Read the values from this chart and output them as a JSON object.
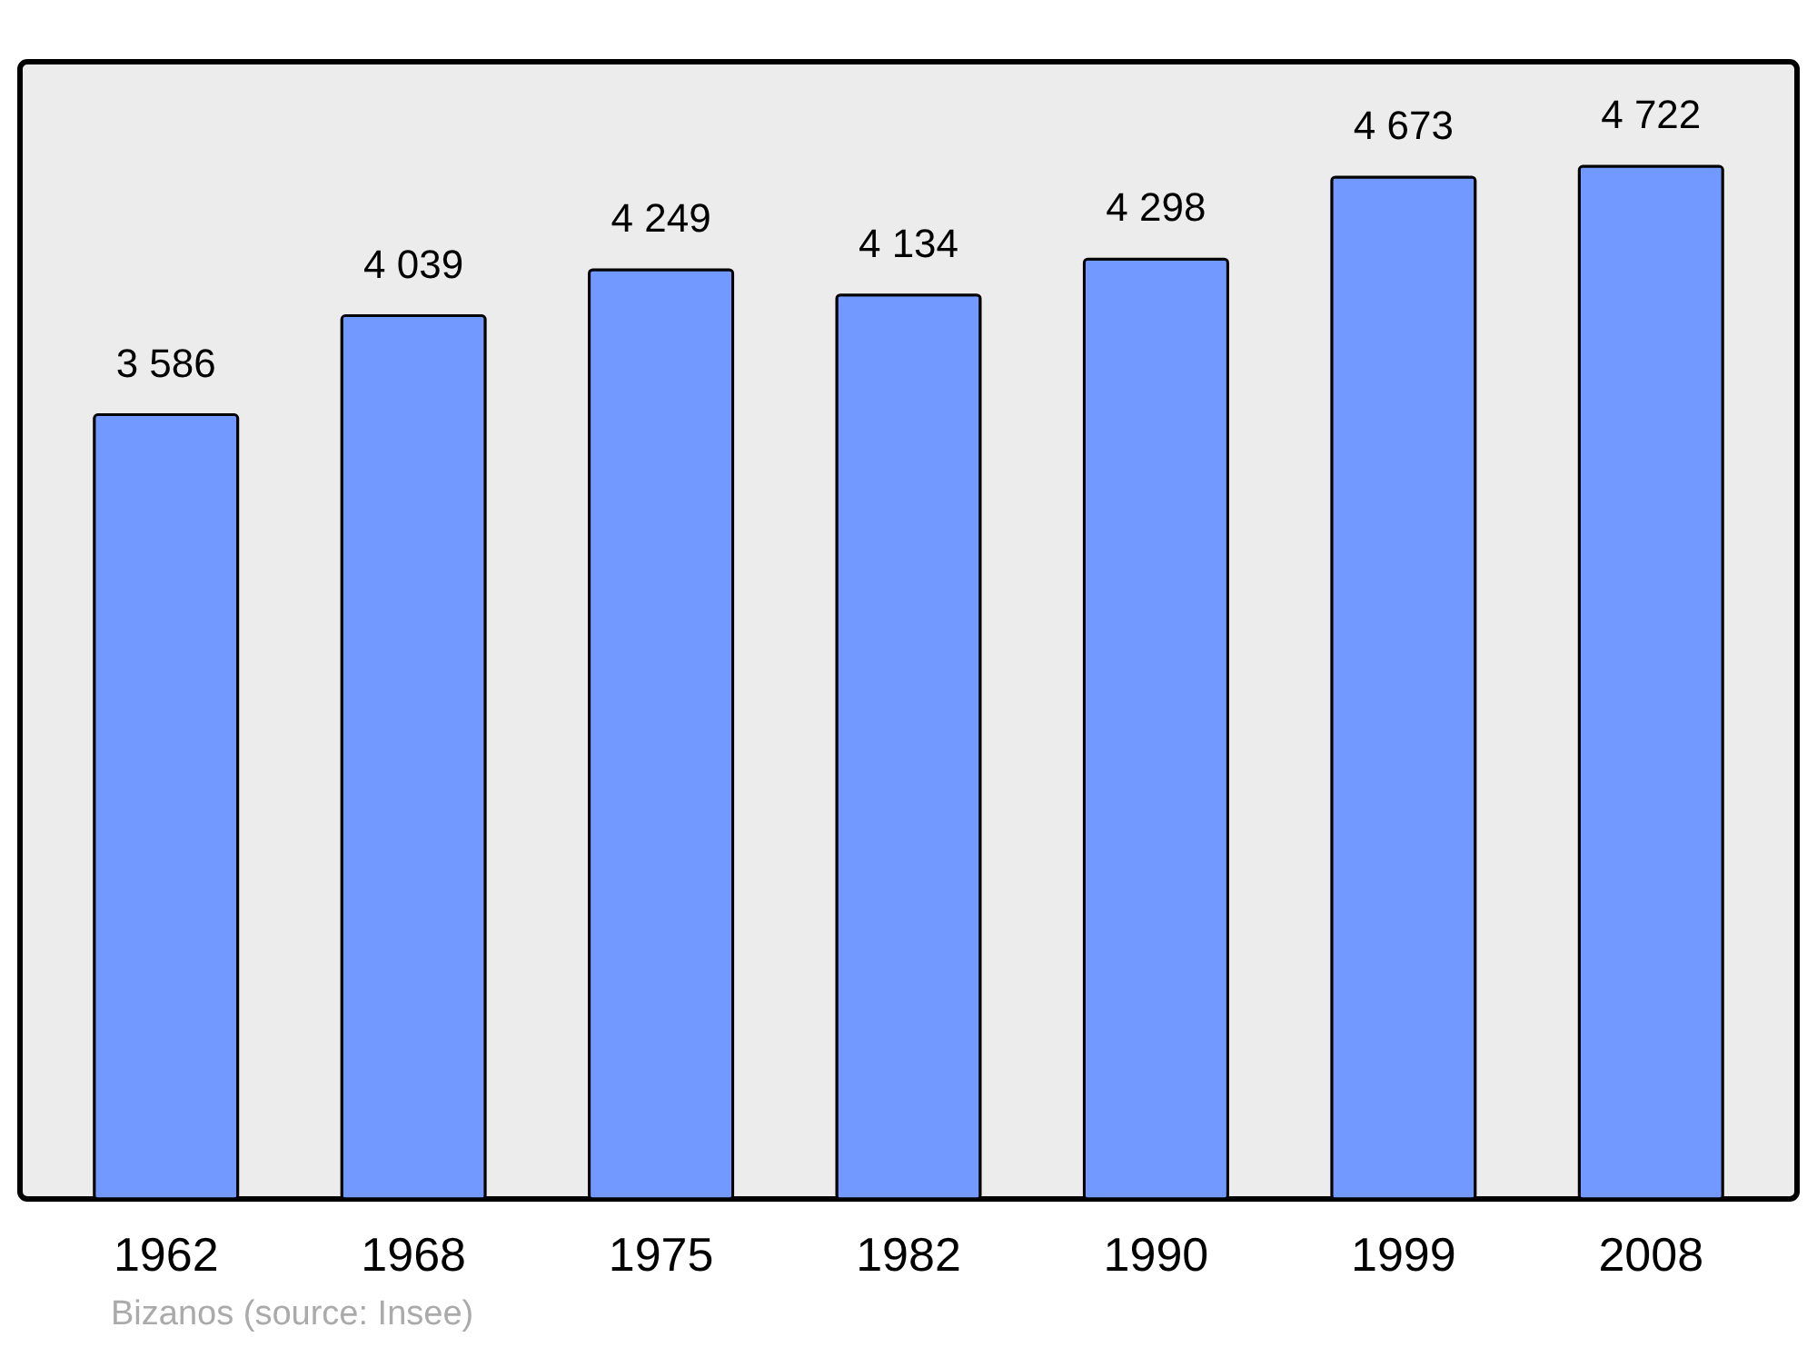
{
  "chart_data": {
    "type": "bar",
    "categories": [
      "1962",
      "1968",
      "1975",
      "1982",
      "1990",
      "1999",
      "2008"
    ],
    "values": [
      3586,
      4039,
      4249,
      4134,
      4298,
      4673,
      4722
    ],
    "value_labels": [
      "3 586",
      "4 039",
      "4 249",
      "4 134",
      "4 298",
      "4 673",
      "4 722"
    ],
    "color": "#7299ff",
    "ylim": [
      0,
      5200
    ],
    "tick_labels": "x",
    "grid": false,
    "annotations": [
      "Bizanos    (source: Insee)"
    ]
  }
}
